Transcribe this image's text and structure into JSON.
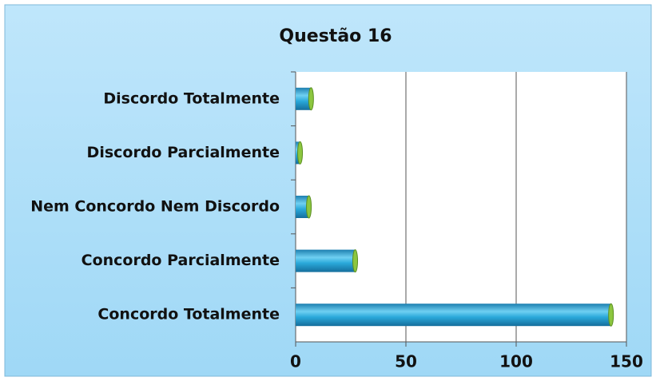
{
  "chart_data": {
    "type": "bar",
    "orientation": "horizontal",
    "title": "Questão 16",
    "categories": [
      "Discordo Totalmente",
      "Discordo Parcialmente",
      "Nem Concordo Nem Discordo",
      "Concordo Parcialmente",
      "Concordo Totalmente"
    ],
    "values": [
      7,
      2,
      6,
      27,
      143
    ],
    "color": "#29a8d8",
    "xlim": [
      0,
      150
    ],
    "xticks": [
      0,
      50,
      100,
      150
    ],
    "grid": true
  }
}
